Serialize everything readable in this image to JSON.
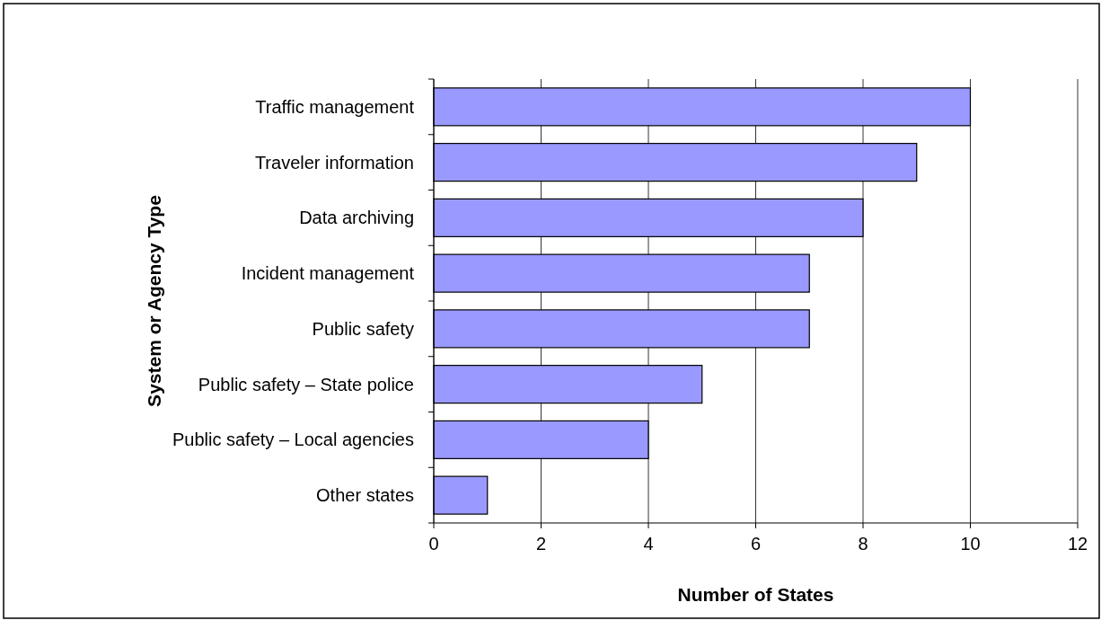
{
  "chart_data": {
    "type": "bar",
    "orientation": "horizontal",
    "xlabel": "Number of States",
    "ylabel": "System or Agency Type",
    "categories": [
      "Traffic management",
      "Traveler information",
      "Data archiving",
      "Incident management",
      "Public safety",
      "Public safety – State police",
      "Public safety – Local agencies",
      "Other states"
    ],
    "values": [
      10,
      9,
      8,
      7,
      7,
      5,
      4,
      1
    ],
    "color": "#9999ff",
    "xlim": [
      0,
      12
    ],
    "xticks": [
      0,
      2,
      4,
      6,
      8,
      10,
      12
    ],
    "grid": "x"
  }
}
